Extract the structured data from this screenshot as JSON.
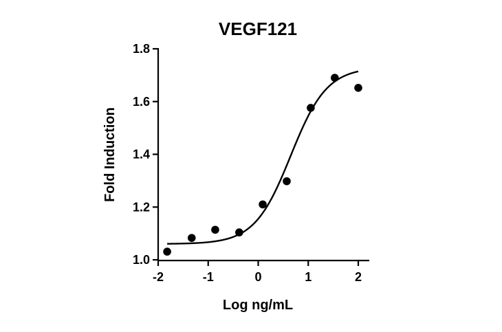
{
  "chart_data": {
    "type": "scatter",
    "title": "VEGF121",
    "xlabel": "Log ng/mL",
    "ylabel": "Fold Induction",
    "xlim": [
      -2,
      2
    ],
    "ylim": [
      1.0,
      1.8
    ],
    "x_ticks": [
      -2,
      -1,
      0,
      1,
      2
    ],
    "x_tick_labels": [
      "-2",
      "-1",
      "0",
      "1",
      "2"
    ],
    "y_ticks": [
      1.0,
      1.2,
      1.4,
      1.6,
      1.8
    ],
    "y_tick_labels": [
      "1.0",
      "1.2",
      "1.4",
      "1.6",
      "1.8"
    ],
    "grid": false,
    "legend": "none",
    "series": [
      {
        "x": [
          -1.82,
          -1.33,
          -0.86,
          -0.38,
          0.09,
          0.57,
          1.05,
          1.53,
          2.0
        ],
        "y": [
          1.031,
          1.083,
          1.114,
          1.104,
          1.21,
          1.298,
          1.576,
          1.69,
          1.652
        ],
        "marker": "circle",
        "color": "#000000"
      }
    ],
    "fit_curve": {
      "type": "4PL",
      "bottom": 1.06,
      "top": 1.73,
      "logEC50": 0.65,
      "hill_slope": 1.2,
      "x_range": [
        -1.82,
        2.0
      ],
      "color": "#000000"
    }
  }
}
